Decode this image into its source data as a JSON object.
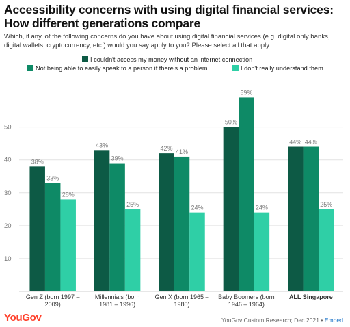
{
  "title": "Accessibility concerns with using digital financial services: How different generations compare",
  "subtitle": "Which, if any, of the following concerns do you have about using digital financial services (e.g. digital only banks, digital wallets, cryptocurrency, etc.) would you say apply to you? Please select all that apply.",
  "footer": {
    "logo": "YouGov",
    "source": "YouGov Custom Research; Dec 2021 • ",
    "embed": "Embed"
  },
  "colors": {
    "series1": "#0d5a45",
    "series2": "#0e8a66",
    "series3": "#2fcfa6",
    "grid": "#e2e2e2",
    "axis_text": "#777777",
    "label_text": "#7a7a7a"
  },
  "chart_data": {
    "type": "bar",
    "categories": [
      [
        "Gen Z (born 1997 –",
        "2009)"
      ],
      [
        "Millennials (born",
        "1981 – 1996)"
      ],
      [
        "Gen X (born 1965 –",
        "1980)"
      ],
      [
        "Baby Boomers (born",
        "1946 – 1964)"
      ],
      [
        "ALL Singapore"
      ]
    ],
    "bold_category_index": 4,
    "series": [
      {
        "name": "I couldn't access my money without an internet connection",
        "values": [
          38,
          43,
          42,
          50,
          44
        ]
      },
      {
        "name": "Not being able to easily speak to a person if there's a problem",
        "values": [
          33,
          39,
          41,
          59,
          44
        ]
      },
      {
        "name": "I don't really understand them",
        "values": [
          28,
          25,
          24,
          24,
          25
        ]
      }
    ],
    "value_suffix": "%",
    "yticks": [
      10,
      20,
      30,
      40,
      50
    ],
    "ylim": [
      0,
      62
    ],
    "grid": true,
    "legend_position": "top"
  }
}
